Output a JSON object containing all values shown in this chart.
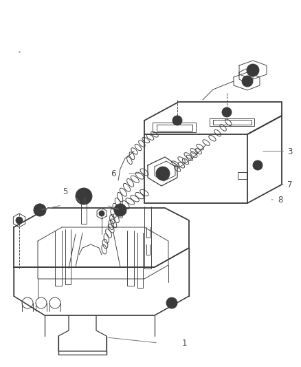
{
  "background_color": "#ffffff",
  "line_color": "#3a3a3a",
  "label_color": "#4a4a4a",
  "leader_color": "#7a7a7a",
  "fig_width": 4.38,
  "fig_height": 5.33,
  "dpi": 100,
  "label_fontsize": 8.5
}
